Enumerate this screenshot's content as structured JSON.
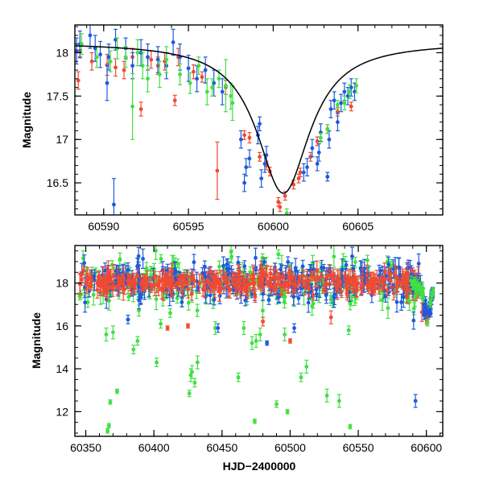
{
  "colors": {
    "red": "#f04a33",
    "blue": "#1e5adc",
    "green": "#40e040",
    "model": "#000000"
  },
  "chart_data": [
    {
      "type": "scatter",
      "xlabel": "",
      "ylabel": "Magnitude",
      "xlim": [
        60588.3,
        60610
      ],
      "ylim": [
        18.32,
        16.13
      ],
      "y_inverted": true,
      "xticks": [
        "60590",
        "60595",
        "60600",
        "60605"
      ],
      "xtick_values": [
        60590,
        60595,
        60600,
        60605
      ],
      "yticks": [
        "16.5",
        "17",
        "17.5",
        "18"
      ],
      "ytick_values": [
        16.5,
        17.0,
        17.5,
        18.0
      ],
      "model_curve": {
        "peak_x": 60600.6,
        "peak_mag": 16.38,
        "base_mag": 18.12,
        "tau": 1.9
      },
      "series": [
        {
          "color": "red",
          "points": [
            [
              60588.5,
              17.68,
              0.1
            ],
            [
              60588.6,
              18.02,
              0.08
            ],
            [
              60589.3,
              17.9,
              0.1
            ],
            [
              60590.2,
              17.86,
              0.12
            ],
            [
              60590.7,
              17.83,
              0.1
            ],
            [
              60591.2,
              17.8,
              0.1
            ],
            [
              60591.7,
              17.95,
              0.1
            ],
            [
              60592.2,
              17.35,
              0.08
            ],
            [
              60592.8,
              17.92,
              0.1
            ],
            [
              60593.2,
              17.85,
              0.1
            ],
            [
              60593.6,
              17.9,
              0.1
            ],
            [
              60594.2,
              17.45,
              0.06
            ],
            [
              60594.4,
              17.95,
              0.1
            ],
            [
              60595.3,
              17.78,
              0.08
            ],
            [
              60595.8,
              17.72,
              0.06
            ],
            [
              60596.7,
              16.64,
              0.33
            ],
            [
              60597.2,
              17.6,
              0.08
            ],
            [
              60598.3,
              17.05,
              0.05
            ],
            [
              60598.6,
              17.02,
              0.06
            ],
            [
              60599.2,
              16.8,
              0.05
            ],
            [
              60599.6,
              16.7,
              0.05
            ],
            [
              60599.8,
              16.63,
              0.05
            ],
            [
              60600.3,
              16.28,
              0.05
            ],
            [
              60600.4,
              16.22,
              0.05
            ],
            [
              60600.7,
              16.35,
              0.05
            ],
            [
              60601.2,
              16.48,
              0.05
            ],
            [
              60601.5,
              16.55,
              0.05
            ],
            [
              60601.6,
              16.62,
              0.05
            ],
            [
              60602.2,
              16.8,
              0.05
            ],
            [
              60602.6,
              16.98,
              0.05
            ],
            [
              60603.2,
              17.12,
              0.05
            ],
            [
              60603.8,
              17.32,
              0.05
            ],
            [
              60604.6,
              17.38,
              0.05
            ]
          ]
        },
        {
          "color": "blue",
          "points": [
            [
              60588.4,
              18.02,
              0.15
            ],
            [
              60588.6,
              18.1,
              0.15
            ],
            [
              60589.2,
              18.2,
              0.15
            ],
            [
              60589.5,
              18.05,
              0.15
            ],
            [
              60589.8,
              17.98,
              0.15
            ],
            [
              60590.2,
              17.65,
              0.2
            ],
            [
              60590.3,
              17.95,
              0.15
            ],
            [
              60590.6,
              16.25,
              0.3
            ],
            [
              60590.7,
              18.15,
              0.12
            ],
            [
              60591.3,
              18.05,
              0.12
            ],
            [
              60591.7,
              17.85,
              0.15
            ],
            [
              60592.2,
              18.0,
              0.15
            ],
            [
              60592.6,
              17.95,
              0.15
            ],
            [
              60593.2,
              17.92,
              0.15
            ],
            [
              60593.7,
              17.85,
              0.15
            ],
            [
              60594.1,
              18.12,
              0.15
            ],
            [
              60594.5,
              17.95,
              0.15
            ],
            [
              60595.0,
              17.82,
              0.15
            ],
            [
              60595.5,
              17.7,
              0.15
            ],
            [
              60596.0,
              17.8,
              0.15
            ],
            [
              60596.5,
              17.65,
              0.15
            ],
            [
              60597.0,
              17.55,
              0.15
            ],
            [
              60598.1,
              17.0,
              0.1
            ],
            [
              60598.3,
              16.5,
              0.1
            ],
            [
              60598.4,
              16.68,
              0.1
            ],
            [
              60598.6,
              16.78,
              0.1
            ],
            [
              60599.1,
              17.05,
              0.1
            ],
            [
              60599.2,
              17.18,
              0.08
            ],
            [
              60599.3,
              16.55,
              0.1
            ],
            [
              60599.5,
              16.72,
              0.1
            ],
            [
              60599.6,
              16.82,
              0.1
            ],
            [
              60601.8,
              16.62,
              0.1
            ],
            [
              60602.0,
              16.68,
              0.1
            ],
            [
              60602.3,
              16.9,
              0.1
            ],
            [
              60602.6,
              16.72,
              0.08
            ],
            [
              60602.7,
              16.85,
              0.1
            ],
            [
              60602.8,
              17.08,
              0.1
            ],
            [
              60603.2,
              16.57,
              0.05
            ],
            [
              60603.3,
              17.0,
              0.1
            ],
            [
              60603.4,
              17.35,
              0.1
            ],
            [
              60603.6,
              17.45,
              0.1
            ],
            [
              60603.8,
              17.2,
              0.1
            ],
            [
              60604.0,
              17.42,
              0.1
            ],
            [
              60604.2,
              17.55,
              0.1
            ],
            [
              60604.4,
              17.5,
              0.1
            ],
            [
              60604.6,
              17.6,
              0.1
            ],
            [
              60604.8,
              17.55,
              0.1
            ]
          ]
        },
        {
          "color": "green",
          "points": [
            [
              60588.7,
              18.1,
              0.12
            ],
            [
              60589.6,
              17.95,
              0.12
            ],
            [
              60590.4,
              17.9,
              0.12
            ],
            [
              60590.8,
              18.05,
              0.12
            ],
            [
              60591.3,
              17.95,
              0.12
            ],
            [
              60591.7,
              17.38,
              0.38
            ],
            [
              60592.0,
              18.0,
              0.15
            ],
            [
              60592.3,
              17.85,
              0.15
            ],
            [
              60592.6,
              17.7,
              0.15
            ],
            [
              60593.3,
              17.75,
              0.15
            ],
            [
              60593.7,
              17.92,
              0.15
            ],
            [
              60594.5,
              17.75,
              0.12
            ],
            [
              60595.1,
              17.65,
              0.12
            ],
            [
              60595.6,
              17.85,
              0.1
            ],
            [
              60596.1,
              17.55,
              0.15
            ],
            [
              60596.4,
              17.6,
              0.1
            ],
            [
              60596.8,
              17.7,
              0.1
            ],
            [
              60597.2,
              17.62,
              0.3
            ],
            [
              60597.5,
              17.5,
              0.15
            ],
            [
              60597.6,
              17.42,
              0.2
            ],
            [
              60600.8,
              16.15,
              0.05
            ],
            [
              60602.8,
              17.02,
              0.05
            ],
            [
              60603.2,
              17.12,
              0.05
            ],
            [
              60603.8,
              17.4,
              0.05
            ],
            [
              60604.2,
              17.42,
              0.08
            ],
            [
              60604.5,
              17.55,
              0.08
            ],
            [
              60604.9,
              17.62,
              0.08
            ]
          ]
        }
      ]
    },
    {
      "type": "scatter",
      "xlabel": "HJD−2400000",
      "ylabel": "Magnitude",
      "xlim": [
        60342,
        60612
      ],
      "ylim": [
        19.75,
        10.85
      ],
      "y_inverted": true,
      "xticks": [
        "60350",
        "60400",
        "60450",
        "60500",
        "60550",
        "60600"
      ],
      "xtick_values": [
        60350,
        60400,
        60450,
        60500,
        60550,
        60600
      ],
      "yticks": [
        "12",
        "14",
        "16",
        "18"
      ],
      "ytick_values": [
        12,
        14,
        16,
        18
      ],
      "baseline": {
        "range": [
          60345,
          60597
        ],
        "mag": 18.05,
        "scatter": {
          "red": 0.25,
          "blue": 0.45,
          "green": 0.55
        },
        "density": {
          "red": 330,
          "blue": 300,
          "green": 220
        }
      },
      "outlier_series": [
        {
          "color": "green",
          "points": [
            [
              60366,
              11.1,
              0.1
            ],
            [
              60367,
              11.35,
              0.1
            ],
            [
              60368,
              12.45,
              0.1
            ],
            [
              60373,
              12.95,
              0.1
            ],
            [
              60365,
              15.6,
              0.3
            ],
            [
              60370,
              15.7,
              0.3
            ],
            [
              60385,
              14.9,
              0.2
            ],
            [
              60388,
              15.3,
              0.2
            ],
            [
              60402,
              14.3,
              0.2
            ],
            [
              60405,
              16.1,
              0.2
            ],
            [
              60412,
              16.6,
              0.2
            ],
            [
              60426,
              12.85,
              0.15
            ],
            [
              60427,
              13.7,
              0.3
            ],
            [
              60428,
              13.85,
              0.3
            ],
            [
              60430,
              13.35,
              0.2
            ],
            [
              60432,
              14.3,
              0.3
            ],
            [
              60445,
              15.9,
              0.3
            ],
            [
              60462,
              13.6,
              0.2
            ],
            [
              60466,
              15.9,
              0.3
            ],
            [
              60472,
              15.2,
              0.3
            ],
            [
              60474,
              11.55,
              0.1
            ],
            [
              60475,
              15.3,
              0.3
            ],
            [
              60478,
              15.6,
              0.3
            ],
            [
              60490,
              12.35,
              0.15
            ],
            [
              60496,
              15.6,
              0.3
            ],
            [
              60498,
              12.0,
              0.1
            ],
            [
              60508,
              13.6,
              0.2
            ],
            [
              60512,
              14.1,
              0.3
            ],
            [
              60527,
              12.75,
              0.3
            ],
            [
              60530,
              17.25,
              0.3
            ],
            [
              60536,
              12.5,
              0.3
            ],
            [
              60543,
              15.8,
              0.2
            ],
            [
              60544,
              11.3,
              0.1
            ]
          ]
        },
        {
          "color": "blue",
          "points": [
            [
              60381,
              16.3,
              0.2
            ],
            [
              60447,
              15.9,
              0.2
            ],
            [
              60483,
              15.2,
              0.1
            ],
            [
              60503,
              15.9,
              0.2
            ],
            [
              60592,
              12.5,
              0.3
            ]
          ]
        },
        {
          "color": "red",
          "points": [
            [
              60410,
              15.9,
              0.1
            ],
            [
              60425,
              16.0,
              0.1
            ],
            [
              60480,
              16.2,
              0.2
            ],
            [
              60500,
              15.3,
              0.1
            ],
            [
              60530,
              16.4,
              0.3
            ]
          ]
        }
      ]
    }
  ]
}
